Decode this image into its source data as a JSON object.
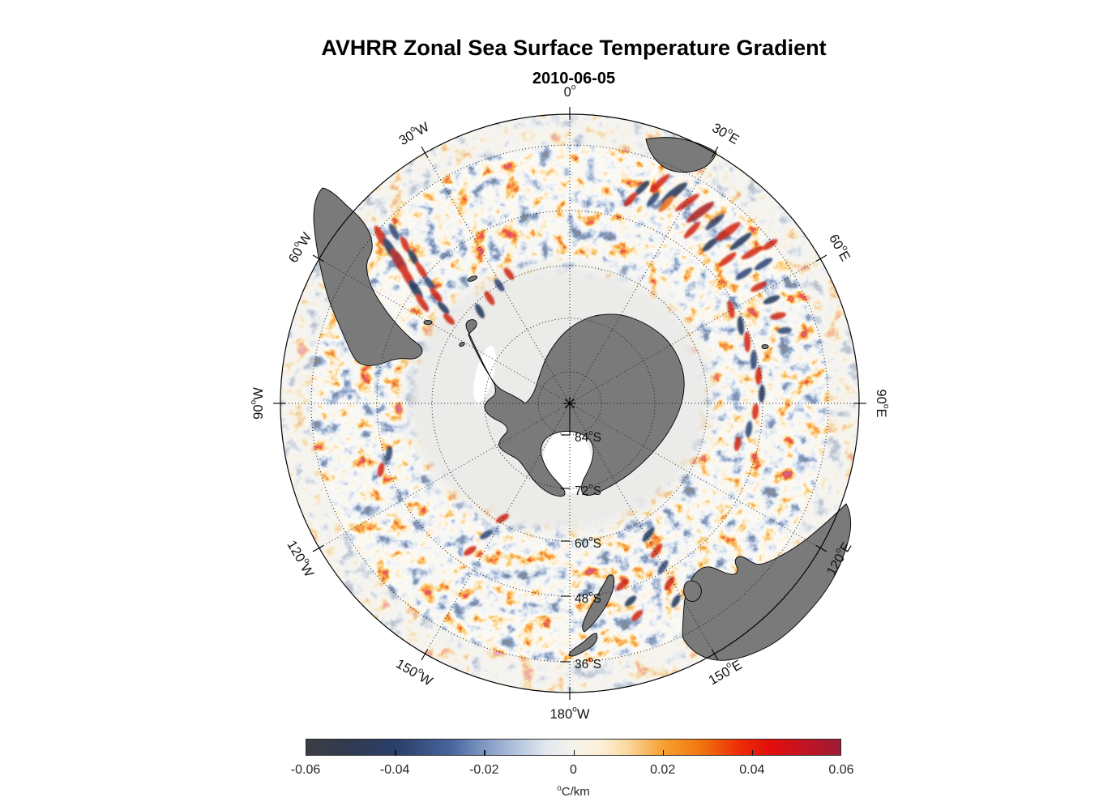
{
  "title": "AVHRR Zonal Sea Surface Temperature Gradient",
  "subtitle": "2010-06-05",
  "chart_data": {
    "type": "heatmap",
    "projection": "south_polar_azimuthal",
    "center": "South Pole (90S)",
    "title": "AVHRR Zonal Sea Surface Temperature Gradient",
    "subtitle": "2010-06-05",
    "variable": "zonal sea surface temperature gradient",
    "units": "°C/km",
    "colorbar": {
      "min": -0.06,
      "max": 0.06,
      "ticks": [
        -0.06,
        -0.04,
        -0.02,
        0,
        0.02,
        0.04,
        0.06
      ],
      "tick_labels": [
        "-0.06",
        "-0.04",
        "-0.02",
        "0",
        "0.02",
        "0.04",
        "0.06"
      ],
      "label": "°C/km",
      "stops": [
        {
          "pos": 0.0,
          "color": "#3b3d42"
        },
        {
          "pos": 0.08,
          "color": "#313a51"
        },
        {
          "pos": 0.167,
          "color": "#2a3f69"
        },
        {
          "pos": 0.27,
          "color": "#47649c"
        },
        {
          "pos": 0.333,
          "color": "#7f98c4"
        },
        {
          "pos": 0.4,
          "color": "#b9c8de"
        },
        {
          "pos": 0.45,
          "color": "#e2e8ee"
        },
        {
          "pos": 0.5,
          "color": "#f4f3ea"
        },
        {
          "pos": 0.55,
          "color": "#fdf0d8"
        },
        {
          "pos": 0.6,
          "color": "#fbd9a2"
        },
        {
          "pos": 0.667,
          "color": "#f5a231"
        },
        {
          "pos": 0.74,
          "color": "#f1740e"
        },
        {
          "pos": 0.81,
          "color": "#ee2d06"
        },
        {
          "pos": 0.87,
          "color": "#e20d0c"
        },
        {
          "pos": 0.93,
          "color": "#c31423"
        },
        {
          "pos": 1.0,
          "color": "#9d1c33"
        }
      ]
    },
    "graticule": {
      "longitude_labels": [
        "0°",
        "30°E",
        "60°E",
        "90°E",
        "120°E",
        "150°E",
        "180°W",
        "150°W",
        "120°W",
        "90°W",
        "60°W",
        "30°W"
      ],
      "longitude_angles_deg": [
        0,
        30,
        60,
        90,
        120,
        150,
        180,
        210,
        240,
        270,
        300,
        330
      ],
      "latitude_labels": [
        "84°S",
        "72°S",
        "60°S",
        "48°S",
        "36°S"
      ]
    },
    "land_features": [
      "Antarctica",
      "Antarctic Peninsula",
      "Ross Ice Shelf",
      "South America",
      "Tierra del Fuego",
      "South Africa",
      "Australia",
      "Tasmania",
      "New Zealand",
      "Kerguelen"
    ],
    "colors": {
      "land": "#7a7a7a",
      "coastline": "#000000",
      "ice_shelf": "#ffffff",
      "sea_ice_zone": "#ebebe9",
      "ocean_base": "#f3f1eb",
      "background": "#ffffff",
      "graticule": "#1a1a1a"
    },
    "notable_features": [
      "Strong alternating positive/negative gradient streaks in the Agulhas Return Current region south-east of South Africa (20°E–80°E)",
      "Strong eddy streaks at the Brazil–Malvinas Confluence east of southern South America",
      "Column of streaks near the Kerguelen Plateau (~70°E–90°E)",
      "Weak mottled gradients over most of the mid-latitude Southern Ocean",
      "Uniform pale gray sea-ice / no-data zone surrounding Antarctica poleward of ~60°S"
    ]
  }
}
